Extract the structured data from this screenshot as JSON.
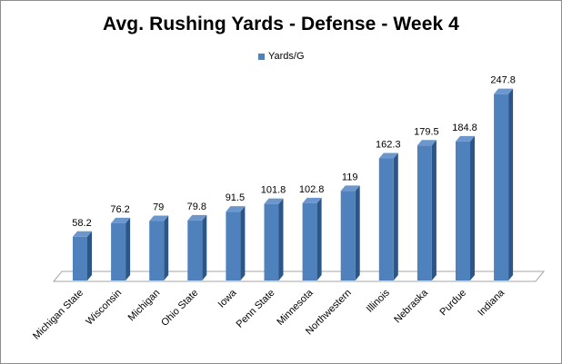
{
  "chart_data": {
    "type": "bar",
    "title": "Avg. Rushing Yards - Defense - Week 4",
    "xlabel": "",
    "ylabel": "",
    "categories": [
      "Michigan State",
      "Wisconsin",
      "Michigan",
      "Ohio State",
      "Iowa",
      "Penn State",
      "Minnesota",
      "Northwestern",
      "Illinois",
      "Nebraska",
      "Purdue",
      "Indiana"
    ],
    "series": [
      {
        "name": "Yards/G",
        "values": [
          58.2,
          76.2,
          79,
          79.8,
          91.5,
          101.8,
          102.8,
          119,
          162.3,
          179.5,
          184.8,
          247.8
        ],
        "labels": [
          "58.2",
          "76.2",
          "79",
          "79.8",
          "91.5",
          "101.8",
          "102.8",
          "119",
          "162.3",
          "179.5",
          "184.8",
          "247.8"
        ]
      }
    ],
    "ylim": [
      0,
      250
    ],
    "grid": false,
    "legend_position": "top-center",
    "style": "3d-column",
    "colors": {
      "bar_front": "#4f81bd",
      "bar_side": "#2b5687",
      "bar_top": "#6c97cc",
      "floor": "#ffffff",
      "floor_edge": "#a6a6a6"
    }
  }
}
